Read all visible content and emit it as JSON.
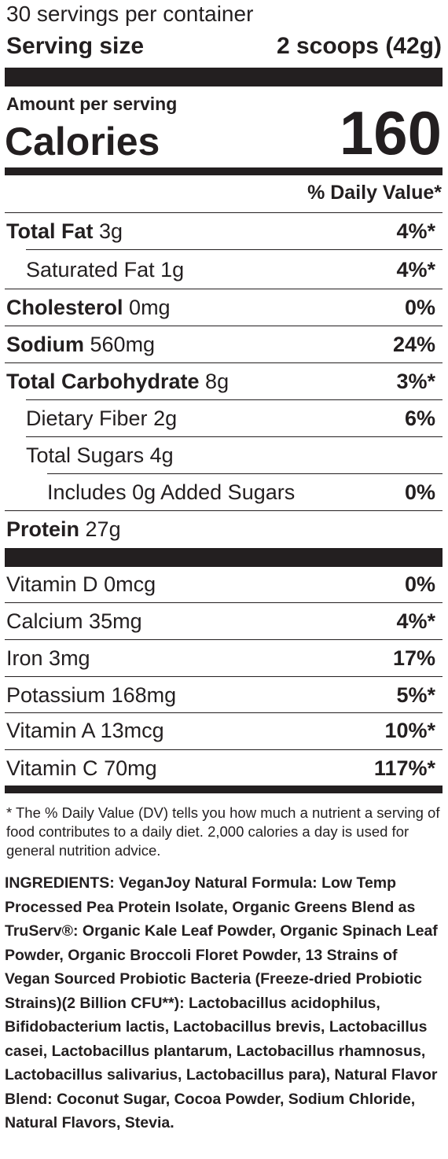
{
  "header": {
    "servings_per_container": "30 servings per container",
    "serving_size_label": "Serving size",
    "serving_size_value": "2 scoops (42g)",
    "amount_per_serving": "Amount per serving",
    "calories_label": "Calories",
    "calories_value": "160",
    "daily_value_heading": "% Daily Value*"
  },
  "nutrients": [
    {
      "name": "Total Fat",
      "amount": "3g",
      "dv": "4%*"
    },
    {
      "name": "Saturated Fat",
      "amount": "1g",
      "dv": "4%*"
    },
    {
      "name": "Cholesterol",
      "amount": "0mg",
      "dv": "0%"
    },
    {
      "name": "Sodium",
      "amount": "560mg",
      "dv": "24%"
    },
    {
      "name": "Total Carbohydrate",
      "amount": "8g",
      "dv": "3%*"
    },
    {
      "name": "Dietary Fiber",
      "amount": "2g",
      "dv": "6%"
    },
    {
      "name": "Total Sugars",
      "amount": "4g",
      "dv": ""
    },
    {
      "name": "Includes 0g Added Sugars",
      "amount": "",
      "dv": "0%"
    },
    {
      "name": "Protein",
      "amount": "27g",
      "dv": ""
    }
  ],
  "vitamins": [
    {
      "name": "Vitamin D",
      "amount": "0mcg",
      "dv": "0%"
    },
    {
      "name": "Calcium",
      "amount": "35mg",
      "dv": "4%*"
    },
    {
      "name": "Iron",
      "amount": "3mg",
      "dv": "17%"
    },
    {
      "name": "Potassium",
      "amount": "168mg",
      "dv": "5%*"
    },
    {
      "name": "Vitamin A",
      "amount": "13mcg",
      "dv": "10%*"
    },
    {
      "name": "Vitamin C",
      "amount": "70mg",
      "dv": "117%*"
    }
  ],
  "footnote": "* The % Daily Value (DV) tells you how much a nutrient a serving of food contributes to a daily diet. 2,000 calories a day is used for general nutrition advice.",
  "ingredients": "INGREDIENTS: VeganJoy Natural Formula: Low Temp Processed Pea Protein Isolate, Organic Greens Blend as TruServ®: Organic Kale Leaf Powder, Organic Spinach Leaf Powder, Organic Broccoli Floret Powder, 13 Strains of Vegan Sourced Probiotic Bacteria (Freeze-dried Probiotic Strains)(2 Billion CFU**): Lactobacillus acidophilus, Bifidobacterium lactis, Lactobacillus brevis, Lactobacillus casei, Lactobacillus plantarum, Lactobacillus rhamnosus, Lactobacillus salivarius, Lactobacillus para), Natural Flavor Blend: Coconut Sugar, Cocoa Powder, Sodium Chloride, Natural Flavors, Stevia."
}
